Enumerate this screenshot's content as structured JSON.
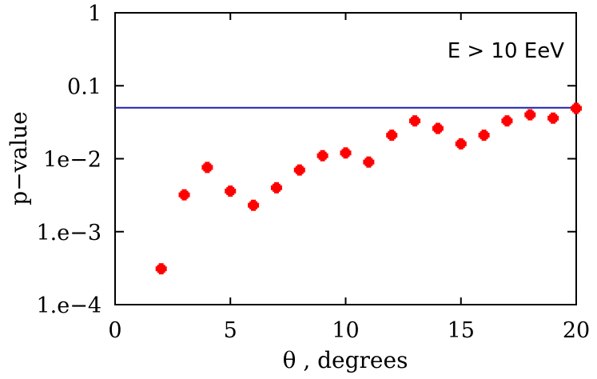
{
  "chart_data": {
    "type": "scatter",
    "title": "",
    "xlabel": "θ , degrees",
    "ylabel": "p−value",
    "x_scale": "linear",
    "y_scale": "log",
    "xlim": [
      0,
      20
    ],
    "ylim": [
      0.0001,
      1
    ],
    "x_ticks": [
      {
        "value": 0,
        "label": "0"
      },
      {
        "value": 5,
        "label": "5"
      },
      {
        "value": 10,
        "label": "10"
      },
      {
        "value": 15,
        "label": "15"
      },
      {
        "value": 20,
        "label": "20"
      }
    ],
    "y_ticks": [
      {
        "value": 1,
        "label": "1"
      },
      {
        "value": 0.1,
        "label": "0.1"
      },
      {
        "value": 0.01,
        "label": "1e−2"
      },
      {
        "value": 0.001,
        "label": "1.e−3"
      },
      {
        "value": 0.0001,
        "label": "1.e−4"
      }
    ],
    "grid": false,
    "annotation": "E > 10 EeV",
    "reference_line": {
      "y": 0.05,
      "color": "#1f1fb4"
    },
    "marker_color": "#ff0000",
    "series": [
      {
        "x": [
          2,
          3,
          4,
          5,
          6,
          7,
          8,
          9,
          10,
          11,
          12,
          13,
          14,
          15,
          16,
          17,
          18,
          19,
          20
        ],
        "y": [
          0.00031,
          0.0032,
          0.0076,
          0.0036,
          0.0023,
          0.004,
          0.007,
          0.011,
          0.012,
          0.009,
          0.021,
          0.033,
          0.026,
          0.016,
          0.021,
          0.033,
          0.04,
          0.036,
          0.049
        ]
      }
    ]
  }
}
